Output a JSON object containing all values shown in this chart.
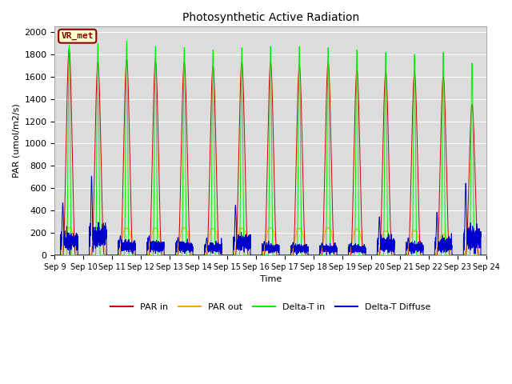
{
  "title": "Photosynthetic Active Radiation",
  "xlabel": "Time",
  "ylabel": "PAR (umol/m2/s)",
  "ylim": [
    0,
    2050
  ],
  "bg_color": "#dcdcdc",
  "fig_color": "#ffffff",
  "label_box": "VR_met",
  "label_box_color": "#ffffcc",
  "label_box_edge": "#8B0000",
  "label_box_text": "#8B0000",
  "colors": {
    "par_in": "#cc0000",
    "par_out": "#ffa500",
    "delta_t_in": "#00ee00",
    "delta_t_diffuse": "#0000cc"
  },
  "legend_labels": [
    "PAR in",
    "PAR out",
    "Delta-T in",
    "Delta-T Diffuse"
  ],
  "x_tick_labels": [
    "Sep 9",
    "Sep 10",
    "Sep 11",
    "Sep 12",
    "Sep 13",
    "Sep 14",
    "Sep 15",
    "Sep 16",
    "Sep 17",
    "Sep 18",
    "Sep 19",
    "Sep 20",
    "Sep 21",
    "Sep 22",
    "Sep 23",
    "Sep 24"
  ],
  "num_days": 15,
  "par_in_peaks": [
    1850,
    1730,
    1760,
    1740,
    1730,
    1700,
    1730,
    1730,
    1700,
    1730,
    1660,
    1640,
    1640,
    1600,
    1350
  ],
  "par_out_peaks": [
    280,
    280,
    275,
    275,
    278,
    270,
    275,
    278,
    272,
    278,
    265,
    245,
    250,
    215,
    185
  ],
  "delta_t_peaks": [
    1880,
    1900,
    1920,
    1870,
    1860,
    1840,
    1860,
    1870,
    1870,
    1860,
    1840,
    1820,
    1800,
    1820,
    1720
  ],
  "delta_t_diffuse_peaks": [
    470,
    710,
    175,
    175,
    160,
    155,
    450,
    125,
    115,
    110,
    108,
    345,
    155,
    385,
    645
  ],
  "delta_t_diffuse_noisy": [
    120,
    165,
    80,
    80,
    75,
    70,
    110,
    65,
    60,
    58,
    55,
    100,
    70,
    95,
    150
  ]
}
